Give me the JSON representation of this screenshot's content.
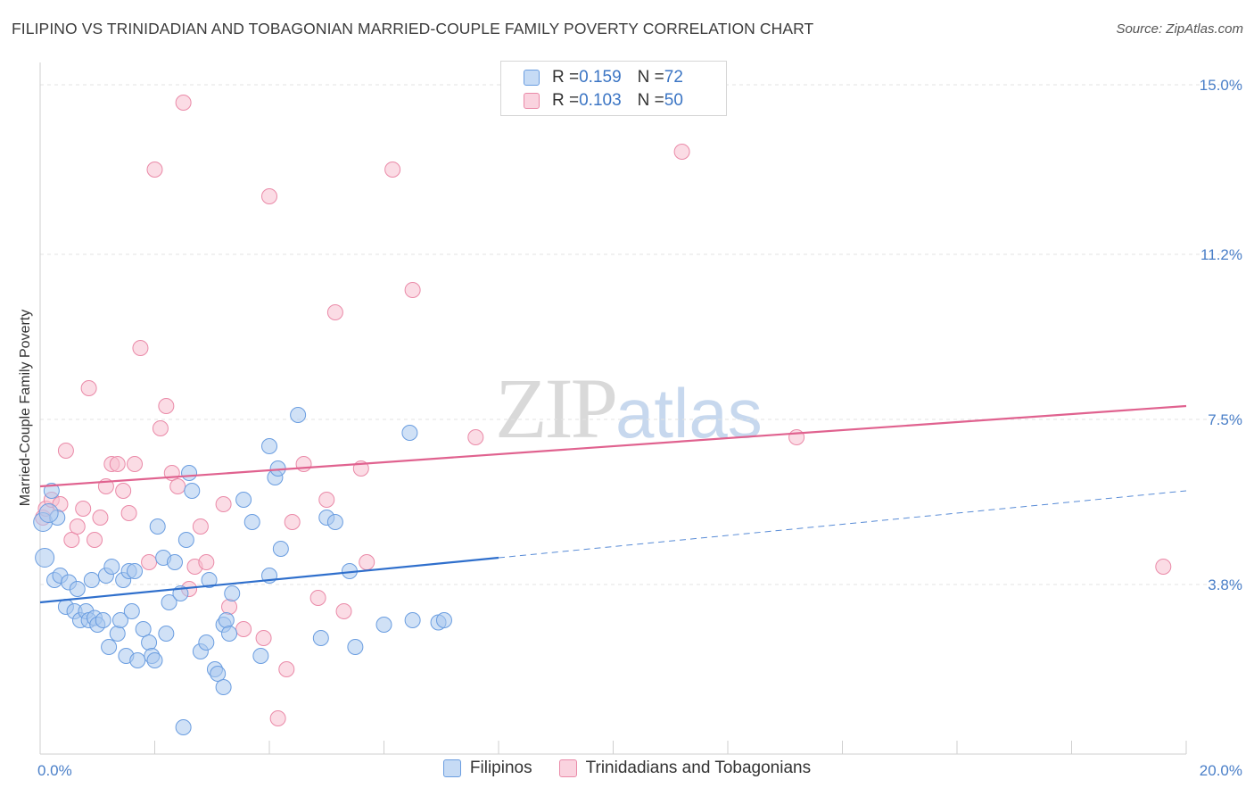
{
  "header": {
    "title": "FILIPINO VS TRINIDADIAN AND TOBAGONIAN MARRIED-COUPLE FAMILY POVERTY CORRELATION CHART",
    "source": "Source: ZipAtlas.com"
  },
  "watermark": {
    "zip": "ZIP",
    "atlas": "atlas"
  },
  "legend_top": {
    "rows": [
      {
        "r_label": "R = ",
        "r_value": "0.159",
        "n_label": "N = ",
        "n_value": "72"
      },
      {
        "r_label": "R = ",
        "r_value": "0.103",
        "n_label": "N = ",
        "n_value": "50"
      }
    ]
  },
  "legend_bottom": {
    "items": [
      "Filipinos",
      "Trinidadians and Tobagonians"
    ]
  },
  "colors": {
    "blue_fill": "#a9c8ef",
    "blue_stroke": "#6a9de0",
    "blue_line": "#2f6fcc",
    "pink_fill": "#f7bfd0",
    "pink_stroke": "#ea8aa8",
    "pink_line": "#e0628f",
    "tick_text": "#4a7fc8"
  },
  "chart_data": {
    "type": "scatter",
    "title": "FILIPINO VS TRINIDADIAN AND TOBAGONIAN MARRIED-COUPLE FAMILY POVERTY CORRELATION CHART",
    "xlabel": "",
    "ylabel": "Married-Couple Family Poverty",
    "xlim": [
      0,
      20
    ],
    "ylim": [
      0,
      15.5
    ],
    "x_tick_labels": [
      "0.0%",
      "20.0%"
    ],
    "y_ticks": [
      3.8,
      7.5,
      11.2,
      15.0
    ],
    "y_tick_labels": [
      "3.8%",
      "7.5%",
      "11.2%",
      "15.0%"
    ],
    "grid": true,
    "legend_position": "top-center",
    "series": [
      {
        "name": "Filipinos",
        "r": 0.159,
        "n": 72,
        "trend": {
          "x0": 0,
          "y0": 3.4,
          "x1": 8,
          "y1": 4.4,
          "dashed_to_x": 20,
          "dashed_to_y": 5.9
        },
        "points": [
          [
            0.05,
            5.2
          ],
          [
            0.08,
            4.4
          ],
          [
            0.2,
            5.9
          ],
          [
            0.3,
            5.3
          ],
          [
            0.25,
            3.9
          ],
          [
            0.35,
            4.0
          ],
          [
            0.45,
            3.3
          ],
          [
            0.5,
            3.85
          ],
          [
            0.6,
            3.2
          ],
          [
            0.7,
            3.0
          ],
          [
            0.65,
            3.7
          ],
          [
            0.8,
            3.2
          ],
          [
            0.85,
            3.0
          ],
          [
            0.95,
            3.05
          ],
          [
            1.0,
            2.9
          ],
          [
            0.9,
            3.9
          ],
          [
            1.1,
            3.0
          ],
          [
            1.15,
            4.0
          ],
          [
            1.2,
            2.4
          ],
          [
            1.25,
            4.2
          ],
          [
            1.35,
            2.7
          ],
          [
            1.4,
            3.0
          ],
          [
            1.45,
            3.9
          ],
          [
            1.5,
            2.2
          ],
          [
            1.55,
            4.1
          ],
          [
            1.6,
            3.2
          ],
          [
            1.65,
            4.1
          ],
          [
            1.7,
            2.1
          ],
          [
            1.8,
            2.8
          ],
          [
            1.9,
            2.5
          ],
          [
            1.95,
            2.2
          ],
          [
            2.0,
            2.1
          ],
          [
            2.05,
            5.1
          ],
          [
            2.15,
            4.4
          ],
          [
            2.2,
            2.7
          ],
          [
            2.25,
            3.4
          ],
          [
            2.35,
            4.3
          ],
          [
            2.45,
            3.6
          ],
          [
            2.5,
            0.6
          ],
          [
            2.55,
            4.8
          ],
          [
            2.6,
            6.3
          ],
          [
            2.65,
            5.9
          ],
          [
            2.8,
            2.3
          ],
          [
            2.9,
            2.5
          ],
          [
            2.95,
            3.9
          ],
          [
            3.05,
            1.9
          ],
          [
            3.1,
            1.8
          ],
          [
            3.2,
            1.5
          ],
          [
            3.2,
            2.9
          ],
          [
            3.25,
            3.0
          ],
          [
            3.3,
            2.7
          ],
          [
            3.35,
            3.6
          ],
          [
            3.55,
            5.7
          ],
          [
            3.7,
            5.2
          ],
          [
            3.85,
            2.2
          ],
          [
            4.0,
            4.0
          ],
          [
            4.1,
            6.2
          ],
          [
            4.15,
            6.4
          ],
          [
            4.2,
            4.6
          ],
          [
            4.0,
            6.9
          ],
          [
            4.5,
            7.6
          ],
          [
            4.9,
            2.6
          ],
          [
            5.0,
            5.3
          ],
          [
            5.15,
            5.2
          ],
          [
            5.4,
            4.1
          ],
          [
            5.5,
            2.4
          ],
          [
            6.0,
            2.9
          ],
          [
            6.45,
            7.2
          ],
          [
            6.5,
            3.0
          ],
          [
            6.95,
            2.95
          ],
          [
            7.05,
            3.0
          ],
          [
            0.15,
            5.4
          ]
        ]
      },
      {
        "name": "Trinidadians and Tobagonians",
        "r": 0.103,
        "n": 50,
        "trend": {
          "x0": 0,
          "y0": 6.0,
          "x1": 20,
          "y1": 7.8
        },
        "points": [
          [
            0.05,
            5.3
          ],
          [
            0.1,
            5.5
          ],
          [
            0.2,
            5.7
          ],
          [
            0.35,
            5.6
          ],
          [
            0.45,
            6.8
          ],
          [
            0.55,
            4.8
          ],
          [
            0.65,
            5.1
          ],
          [
            0.75,
            5.5
          ],
          [
            0.85,
            8.2
          ],
          [
            0.95,
            4.8
          ],
          [
            1.05,
            5.3
          ],
          [
            1.15,
            6.0
          ],
          [
            1.25,
            6.5
          ],
          [
            1.35,
            6.5
          ],
          [
            1.45,
            5.9
          ],
          [
            1.55,
            5.4
          ],
          [
            1.65,
            6.5
          ],
          [
            1.75,
            9.1
          ],
          [
            1.9,
            4.3
          ],
          [
            2.0,
            13.1
          ],
          [
            2.1,
            7.3
          ],
          [
            2.2,
            7.8
          ],
          [
            2.3,
            6.3
          ],
          [
            2.4,
            6.0
          ],
          [
            2.5,
            14.6
          ],
          [
            2.6,
            3.7
          ],
          [
            2.7,
            4.2
          ],
          [
            2.8,
            5.1
          ],
          [
            2.9,
            4.3
          ],
          [
            3.2,
            5.6
          ],
          [
            3.3,
            3.3
          ],
          [
            3.55,
            2.8
          ],
          [
            3.9,
            2.6
          ],
          [
            4.0,
            12.5
          ],
          [
            4.15,
            0.8
          ],
          [
            4.3,
            1.9
          ],
          [
            4.4,
            5.2
          ],
          [
            4.6,
            6.5
          ],
          [
            4.85,
            3.5
          ],
          [
            5.0,
            5.7
          ],
          [
            5.15,
            9.9
          ],
          [
            5.3,
            3.2
          ],
          [
            5.6,
            6.4
          ],
          [
            5.7,
            4.3
          ],
          [
            6.15,
            13.1
          ],
          [
            6.5,
            10.4
          ],
          [
            7.6,
            7.1
          ],
          [
            11.2,
            13.5
          ],
          [
            13.2,
            7.1
          ],
          [
            19.6,
            4.2
          ]
        ]
      }
    ]
  }
}
